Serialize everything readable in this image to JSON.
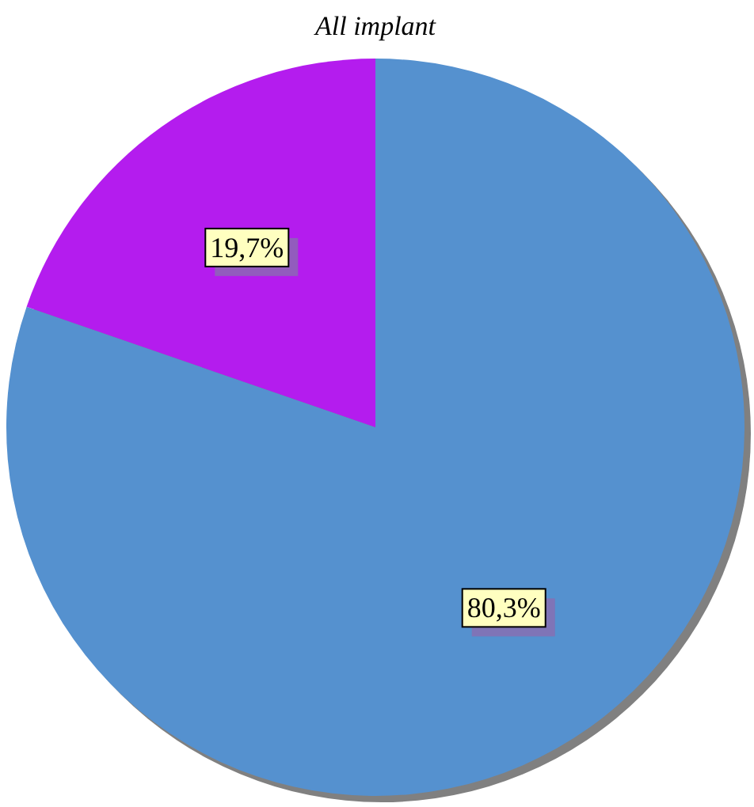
{
  "chart_data": {
    "type": "pie",
    "title": "All implant",
    "categories": [
      null,
      null
    ],
    "values": [
      80.3,
      19.7
    ],
    "colors": [
      "#5591cf",
      "#b41cee"
    ],
    "value_labels": [
      "80,3%",
      "19,7%"
    ]
  }
}
